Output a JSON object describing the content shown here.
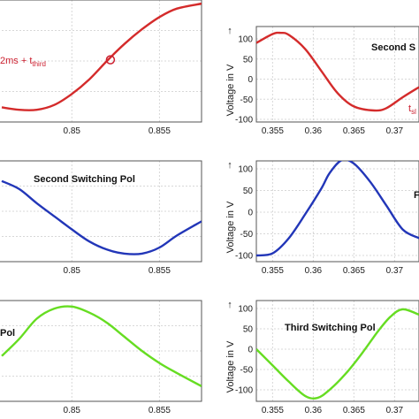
{
  "chart_data": [
    {
      "type": "line",
      "panel": "top-left",
      "series": [
        {
          "color": "#d42b2b",
          "x": [
            0.846,
            0.847,
            0.848,
            0.849,
            0.85,
            0.851,
            0.852,
            0.853,
            0.854,
            0.855,
            0.856,
            0.8574
          ],
          "y": [
            0.12,
            0.1,
            0.1,
            0.14,
            0.23,
            0.35,
            0.5,
            0.64,
            0.76,
            0.86,
            0.93,
            0.97
          ]
        }
      ],
      "xlim": [
        0.8458,
        0.8574
      ],
      "x_ticks": [
        0.85,
        0.855
      ],
      "x_tick_labels": [
        "0.85",
        "0.855"
      ],
      "marker": {
        "x": 0.8522,
        "y": 0.51
      },
      "annotation_main": "2ms + t",
      "annotation_sub": "third",
      "annotation_color": "#cc2030"
    },
    {
      "type": "line",
      "panel": "top-right",
      "series": [
        {
          "color": "#d42b2b",
          "x": [
            0.353,
            0.355,
            0.356,
            0.357,
            0.359,
            0.361,
            0.363,
            0.365,
            0.3675,
            0.369,
            0.371,
            0.373
          ],
          "y": [
            90,
            112,
            115,
            110,
            75,
            20,
            -35,
            -68,
            -78,
            -72,
            -45,
            -20
          ]
        }
      ],
      "xlim": [
        0.353,
        0.373
      ],
      "ylim": [
        -130,
        125
      ],
      "x_ticks": [
        0.355,
        0.36,
        0.365,
        0.37
      ],
      "x_tick_labels": [
        "0.355",
        "0.36",
        "0.365",
        "0.37"
      ],
      "y_ticks": [
        100,
        50,
        0,
        -50,
        -100
      ],
      "y_tick_labels": [
        "100",
        "50",
        "0",
        "-50",
        "-100"
      ],
      "ylabel": "Voltage in V",
      "arrow": "↑",
      "annotation": "Second S",
      "annotation_t_main": "t",
      "annotation_t_sub": "sl"
    },
    {
      "type": "line",
      "panel": "middle-left",
      "series": [
        {
          "color": "#2236b8",
          "x": [
            0.846,
            0.847,
            0.848,
            0.849,
            0.85,
            0.851,
            0.852,
            0.853,
            0.854,
            0.855,
            0.856,
            0.8574
          ],
          "y": [
            0.8,
            0.72,
            0.58,
            0.45,
            0.32,
            0.2,
            0.12,
            0.08,
            0.08,
            0.14,
            0.26,
            0.4
          ]
        }
      ],
      "xlim": [
        0.8458,
        0.8574
      ],
      "x_ticks": [
        0.85,
        0.855
      ],
      "x_tick_labels": [
        "0.85",
        "0.855"
      ],
      "annotation": "Second Switching Pol"
    },
    {
      "type": "line",
      "panel": "middle-right",
      "series": [
        {
          "color": "#2236b8",
          "x": [
            0.353,
            0.355,
            0.357,
            0.359,
            0.361,
            0.362,
            0.3635,
            0.365,
            0.367,
            0.369,
            0.371,
            0.373
          ],
          "y": [
            -100,
            -95,
            -60,
            -5,
            55,
            90,
            120,
            112,
            70,
            15,
            -40,
            -60
          ]
        }
      ],
      "xlim": [
        0.353,
        0.373
      ],
      "ylim": [
        -110,
        130
      ],
      "x_ticks": [
        0.355,
        0.36,
        0.365,
        0.37
      ],
      "x_tick_labels": [
        "0.355",
        "0.36",
        "0.365",
        "0.37"
      ],
      "y_ticks": [
        100,
        50,
        0,
        -50,
        -100
      ],
      "y_tick_labels": [
        "100",
        "50",
        "0",
        "-50",
        "-100"
      ],
      "ylabel": "Voltage in V",
      "arrow": "↑",
      "annotation": "F"
    },
    {
      "type": "line",
      "panel": "bottom-left",
      "series": [
        {
          "color": "#66dd22",
          "x": [
            0.846,
            0.847,
            0.848,
            0.849,
            0.85,
            0.851,
            0.852,
            0.853,
            0.854,
            0.855,
            0.856,
            0.8574
          ],
          "y": [
            0.45,
            0.62,
            0.82,
            0.92,
            0.94,
            0.88,
            0.78,
            0.64,
            0.5,
            0.38,
            0.28,
            0.15
          ]
        }
      ],
      "xlim": [
        0.8458,
        0.8574
      ],
      "x_ticks": [
        0.85,
        0.855
      ],
      "x_tick_labels": [
        "0.85",
        "0.855"
      ],
      "annotation": "Pol"
    },
    {
      "type": "line",
      "panel": "bottom-right",
      "series": [
        {
          "color": "#66dd22",
          "x": [
            0.353,
            0.355,
            0.357,
            0.359,
            0.3605,
            0.362,
            0.364,
            0.366,
            0.368,
            0.3695,
            0.371,
            0.373
          ],
          "y": [
            0,
            -40,
            -80,
            -115,
            -120,
            -100,
            -60,
            -10,
            45,
            80,
            98,
            85
          ]
        }
      ],
      "xlim": [
        0.353,
        0.373
      ],
      "ylim": [
        -130,
        110
      ],
      "x_ticks": [
        0.355,
        0.36,
        0.365,
        0.37
      ],
      "x_tick_labels": [
        "0.355",
        "0.36",
        "0.365",
        "0.37"
      ],
      "y_ticks": [
        100,
        50,
        0,
        -50,
        -100
      ],
      "y_tick_labels": [
        "100",
        "50",
        "0",
        "-50",
        "-100"
      ],
      "ylabel": "Voltage in V",
      "arrow": "↑",
      "annotation": "Third Switching Pol"
    }
  ]
}
